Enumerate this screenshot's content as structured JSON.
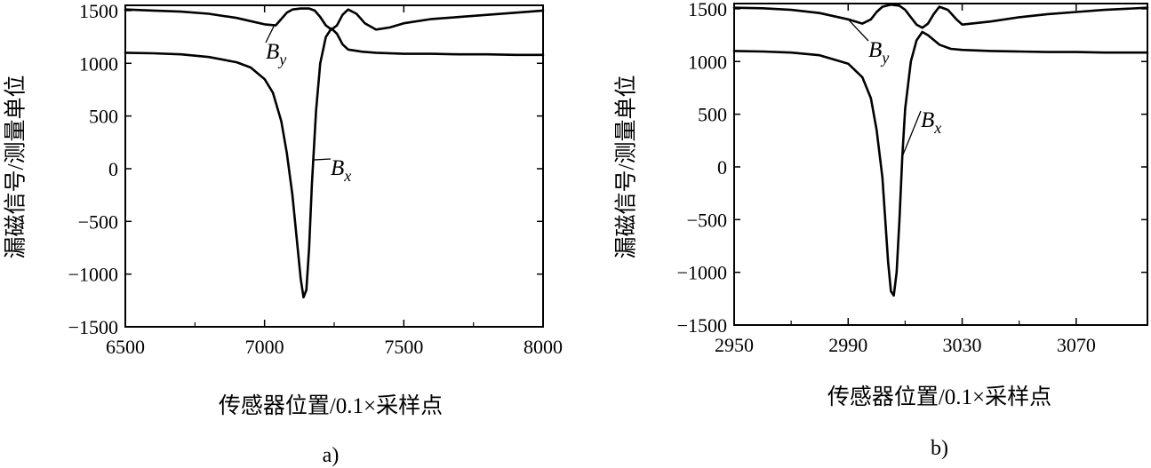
{
  "chart_data": [
    {
      "type": "line",
      "panel_label": "a)",
      "ylabel": "漏磁信号/测量单位",
      "xlabel": "传感器位置/0.1×采样点",
      "xlim": [
        6500,
        8000
      ],
      "ylim": [
        -1500,
        1550
      ],
      "xticks": [
        "6500",
        "7000",
        "7500",
        "8000"
      ],
      "yticks": [
        "1500",
        "1000",
        "500",
        "0",
        "−500",
        "−1000",
        "−1500"
      ],
      "grid": false,
      "series": [
        {
          "name": "Bx",
          "x": [
            6500,
            6600,
            6700,
            6800,
            6900,
            6950,
            7000,
            7030,
            7060,
            7080,
            7100,
            7115,
            7130,
            7140,
            7150,
            7160,
            7170,
            7185,
            7200,
            7220,
            7240,
            7260,
            7280,
            7300,
            7350,
            7400,
            7500,
            7600,
            7700,
            7800,
            7900,
            8000
          ],
          "y": [
            1100,
            1095,
            1085,
            1060,
            1010,
            960,
            850,
            720,
            450,
            150,
            -250,
            -650,
            -1050,
            -1220,
            -1150,
            -750,
            -150,
            550,
            1000,
            1250,
            1330,
            1280,
            1180,
            1130,
            1110,
            1100,
            1090,
            1090,
            1085,
            1085,
            1080,
            1080
          ]
        },
        {
          "name": "By",
          "x": [
            6500,
            6600,
            6700,
            6800,
            6900,
            6950,
            7000,
            7040,
            7060,
            7080,
            7100,
            7130,
            7160,
            7180,
            7200,
            7220,
            7240,
            7260,
            7280,
            7300,
            7330,
            7360,
            7400,
            7450,
            7500,
            7600,
            7700,
            7800,
            7900,
            8000
          ],
          "y": [
            1510,
            1500,
            1490,
            1470,
            1430,
            1400,
            1370,
            1360,
            1420,
            1480,
            1510,
            1520,
            1520,
            1500,
            1440,
            1360,
            1320,
            1360,
            1460,
            1510,
            1470,
            1380,
            1320,
            1340,
            1380,
            1420,
            1440,
            1460,
            1480,
            1500
          ]
        }
      ],
      "annotations": [
        {
          "series": "By",
          "text_main": "B",
          "text_sub": "y"
        },
        {
          "series": "Bx",
          "text_main": "B",
          "text_sub": "x"
        }
      ]
    },
    {
      "type": "line",
      "panel_label": "b)",
      "ylabel": "漏磁信号/测量单位",
      "xlabel": "传感器位置/0.1×采样点",
      "xlim": [
        2950,
        3095
      ],
      "ylim": [
        -1500,
        1550
      ],
      "xticks": [
        "2950",
        "2990",
        "3030",
        "3070"
      ],
      "yticks": [
        "1500",
        "1000",
        "500",
        "0",
        "−500",
        "−1000",
        "−1500"
      ],
      "grid": false,
      "series": [
        {
          "name": "Bx",
          "x": [
            2950,
            2960,
            2970,
            2980,
            2990,
            2995,
            2998,
            3000,
            3002,
            3003,
            3004,
            3005,
            3006,
            3007,
            3008,
            3009,
            3010,
            3012,
            3014,
            3016,
            3018,
            3022,
            3026,
            3030,
            3040,
            3050,
            3060,
            3070,
            3080,
            3095
          ],
          "y": [
            1100,
            1095,
            1085,
            1060,
            980,
            850,
            650,
            350,
            -100,
            -500,
            -900,
            -1180,
            -1220,
            -1000,
            -500,
            100,
            550,
            1000,
            1200,
            1280,
            1250,
            1160,
            1120,
            1110,
            1100,
            1095,
            1090,
            1090,
            1085,
            1085
          ]
        },
        {
          "name": "By",
          "x": [
            2950,
            2960,
            2970,
            2980,
            2990,
            2995,
            2998,
            3000,
            3002,
            3005,
            3008,
            3010,
            3012,
            3014,
            3016,
            3018,
            3020,
            3022,
            3025,
            3028,
            3030,
            3040,
            3050,
            3060,
            3070,
            3080,
            3095
          ],
          "y": [
            1510,
            1505,
            1490,
            1460,
            1400,
            1360,
            1400,
            1470,
            1520,
            1540,
            1530,
            1490,
            1420,
            1350,
            1320,
            1360,
            1450,
            1520,
            1490,
            1400,
            1350,
            1380,
            1420,
            1450,
            1470,
            1490,
            1510
          ]
        }
      ],
      "annotations": [
        {
          "series": "By",
          "text_main": "B",
          "text_sub": "y"
        },
        {
          "series": "Bx",
          "text_main": "B",
          "text_sub": "x"
        }
      ]
    }
  ]
}
